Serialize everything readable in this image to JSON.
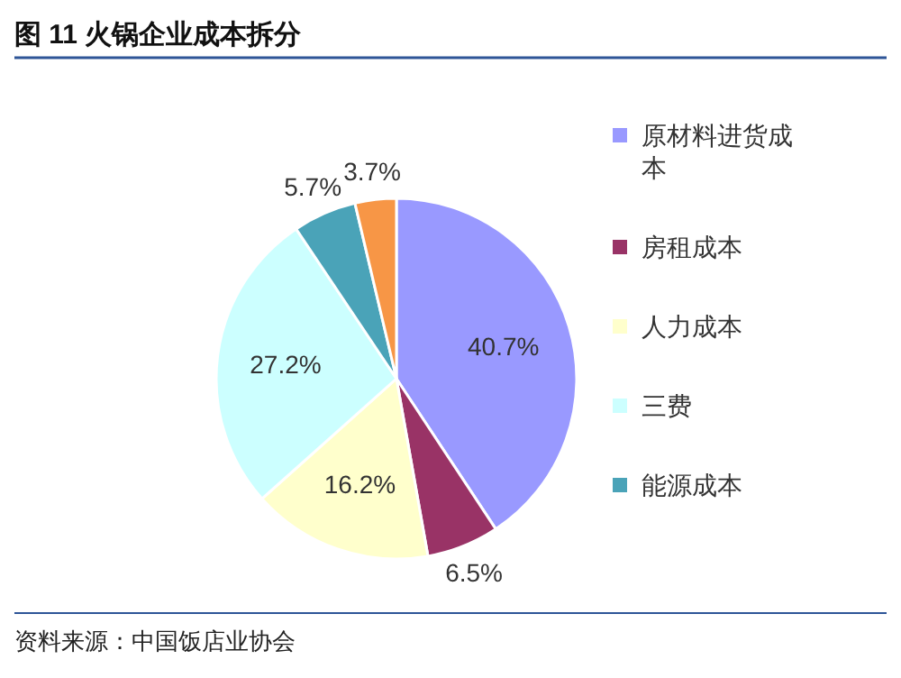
{
  "chart_data": {
    "type": "pie",
    "title": "图 11 火锅企业成本拆分",
    "categories": [
      "原材料进货成本",
      "房租成本",
      "人力成本",
      "三费",
      "能源成本",
      null
    ],
    "values": [
      40.7,
      6.5,
      16.2,
      27.2,
      5.7,
      3.7
    ],
    "colors": [
      "#9999ff",
      "#993366",
      "#ffffcc",
      "#ccffff",
      "#4aa3b8",
      "#f79646"
    ],
    "value_labels": [
      "40.7%",
      "6.5%",
      "16.2%",
      "27.2%",
      "5.7%",
      "3.7%"
    ],
    "legend": "right",
    "annotations": [
      "资料来源：中国饭店业协会"
    ]
  }
}
